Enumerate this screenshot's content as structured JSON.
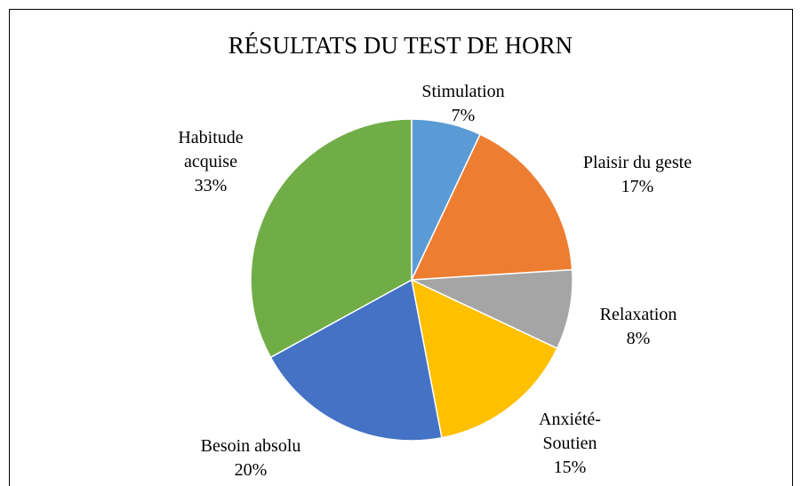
{
  "chart_data": {
    "type": "pie",
    "title": "RÉSULTATS DU TEST DE HORN",
    "categories": [
      "Stimulation",
      "Plaisir du geste",
      "Relaxation",
      "Anxiété-Soutien",
      "Besoin absolu",
      "Habitude acquise"
    ],
    "values": [
      7,
      17,
      8,
      15,
      20,
      33
    ],
    "value_labels": [
      "7%",
      "17%",
      "8%",
      "15%",
      "20%",
      "33%"
    ],
    "colors": [
      "#5b9bd5",
      "#ed7d31",
      "#a5a5a5",
      "#ffc000",
      "#4472c4",
      "#70ad47"
    ]
  }
}
